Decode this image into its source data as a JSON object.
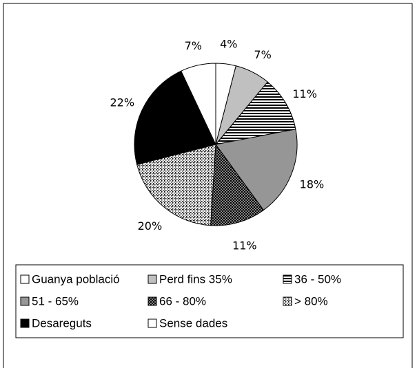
{
  "chart_data": {
    "type": "pie",
    "categories": [
      "Guanya població",
      "Perd fins 35%",
      "36 - 50%",
      "51 - 65%",
      "66 - 80%",
      "> 80%",
      "Desareguts",
      "Sense dades"
    ],
    "values": [
      4,
      7,
      11,
      18,
      11,
      20,
      22,
      7
    ],
    "value_labels": [
      "4%",
      "7%",
      "11%",
      "18%",
      "11%",
      "20%",
      "22%",
      "7%"
    ],
    "colors": [
      "#ffffff",
      "#c0c0c0",
      "#ffffff",
      "#969696",
      "#808080",
      "#ffffff",
      "#000000",
      "#ffffff"
    ],
    "patterns": [
      "solid",
      "solid",
      "stripes",
      "solid",
      "dots",
      "fine-dots",
      "solid",
      "solid"
    ],
    "legend": "bottom"
  }
}
